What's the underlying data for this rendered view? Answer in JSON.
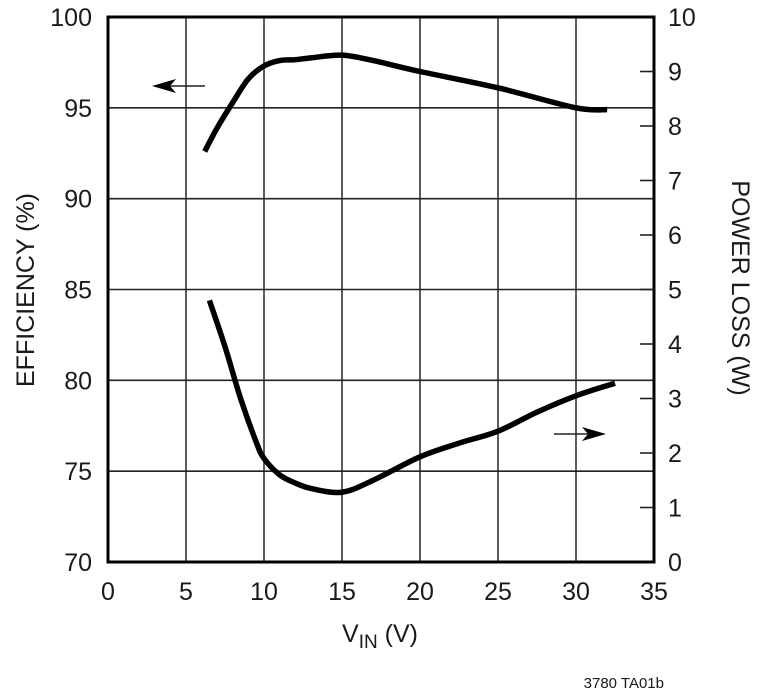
{
  "chart_data": {
    "type": "line",
    "title": "",
    "xlabel": "VIN (V)",
    "xlabel_main": "V",
    "xlabel_sub": "IN",
    "xlabel_unit": " (V)",
    "ylabel": "EFFICIENCY (%)",
    "y2label": "POWER LOSS (W)",
    "xlim": [
      0,
      35
    ],
    "ylim": [
      70,
      100
    ],
    "y2lim": [
      0,
      10
    ],
    "x_ticks": [
      "0",
      "5",
      "10",
      "15",
      "20",
      "25",
      "30",
      "35"
    ],
    "y_ticks": [
      "70",
      "75",
      "80",
      "85",
      "90",
      "95",
      "100"
    ],
    "y2_ticks": [
      "0",
      "1",
      "2",
      "3",
      "4",
      "5",
      "6",
      "7",
      "8",
      "9",
      "10"
    ],
    "grid": true,
    "legend": "none (arrows indicate axis: efficiency curve → left axis, power loss curve → right axis)",
    "series": [
      {
        "name": "Efficiency",
        "axis": "left",
        "x": [
          6.2,
          7,
          8,
          9,
          10,
          11,
          12,
          13,
          15,
          17,
          20,
          25,
          30,
          32
        ],
        "values": [
          92.6,
          93.9,
          95.3,
          96.6,
          97.3,
          97.6,
          97.65,
          97.75,
          97.9,
          97.6,
          97.0,
          96.1,
          95.0,
          94.9
        ]
      },
      {
        "name": "Power Loss",
        "axis": "right",
        "x": [
          6.5,
          7.5,
          8.5,
          9.5,
          10,
          11,
          12,
          13,
          15,
          17,
          20,
          22.5,
          25,
          27.5,
          30,
          32.5
        ],
        "values": [
          4.8,
          3.95,
          3.0,
          2.2,
          1.9,
          1.6,
          1.45,
          1.35,
          1.28,
          1.5,
          1.93,
          2.18,
          2.4,
          2.75,
          3.05,
          3.28
        ]
      }
    ],
    "annotations": [
      {
        "type": "arrow",
        "direction": "left",
        "near_series": "Efficiency"
      },
      {
        "type": "arrow",
        "direction": "right",
        "near_series": "Power Loss"
      }
    ],
    "footnote": "3780 TA01b"
  }
}
